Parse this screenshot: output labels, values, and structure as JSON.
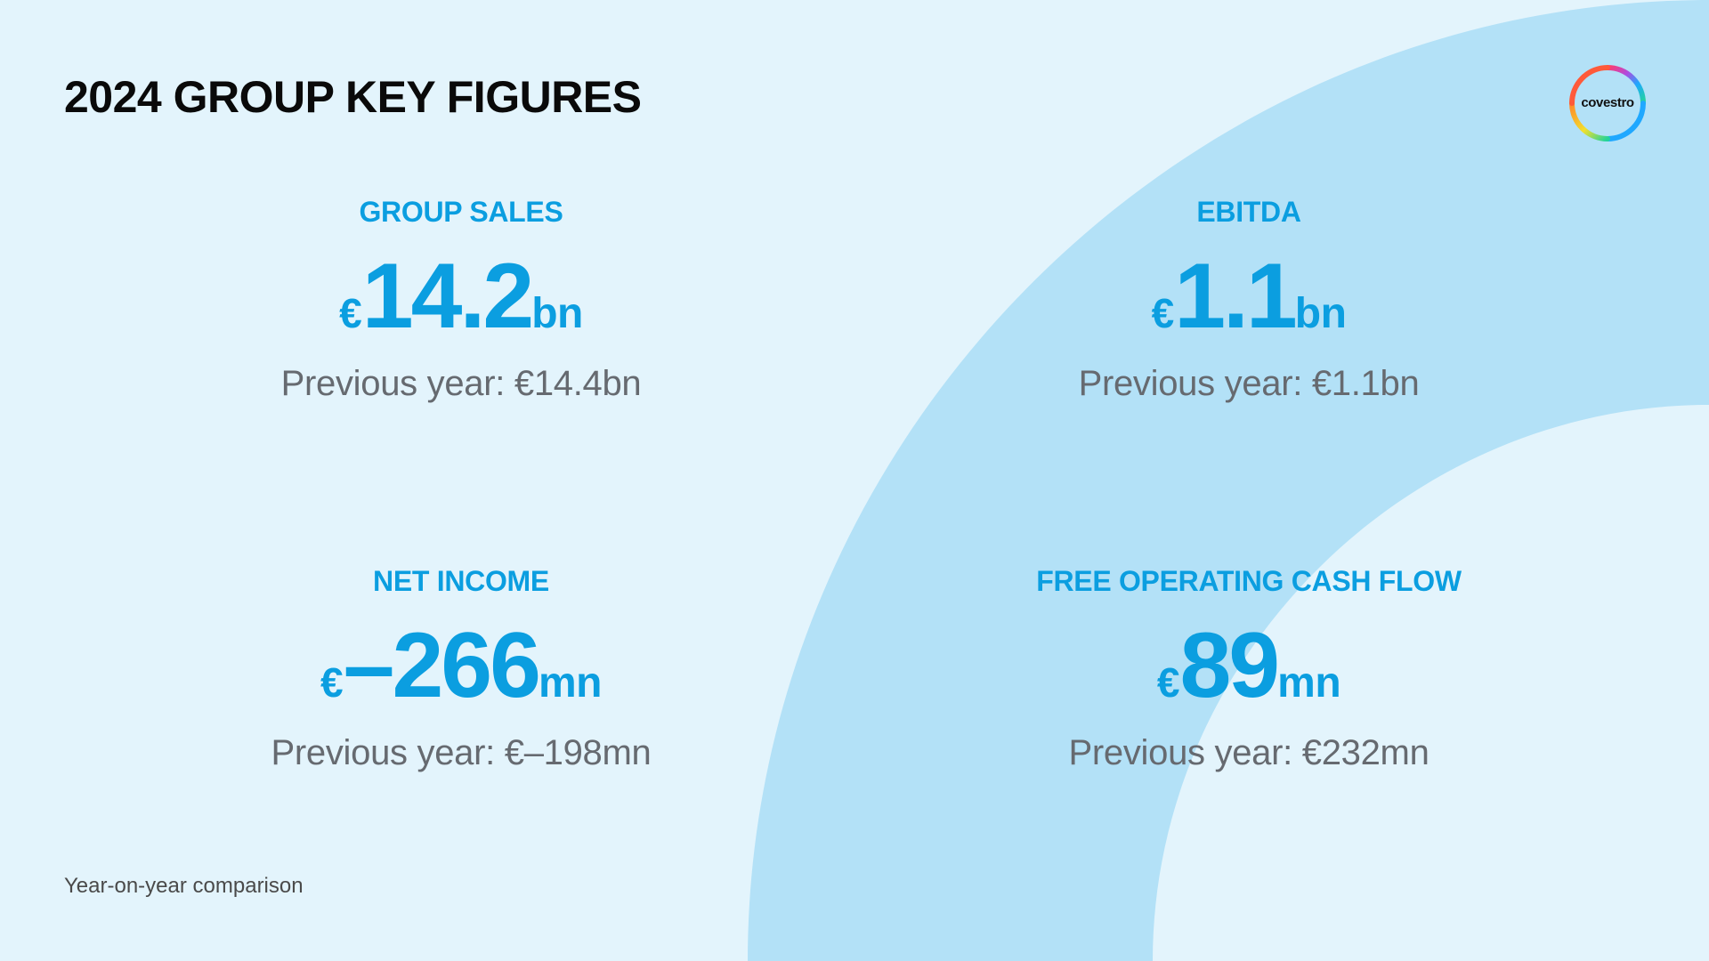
{
  "page": {
    "title": "2024 GROUP KEY FIGURES",
    "footnote": "Year-on-year comparison"
  },
  "logo": {
    "text": "covestro"
  },
  "kpis": [
    {
      "label": "GROUP SALES",
      "currency": "€",
      "value": "14.2",
      "unit": "bn",
      "previous": "Previous year: €14.4bn"
    },
    {
      "label": "EBITDA",
      "currency": "€",
      "value": "1.1",
      "unit": "bn",
      "previous": "Previous year: €1.1bn"
    },
    {
      "label": "NET INCOME",
      "currency": "€",
      "value": "–266",
      "unit": "mn",
      "previous": "Previous year: €–198mn"
    },
    {
      "label": "FREE OPERATING CASH FLOW",
      "currency": "€",
      "value": "89",
      "unit": "mn",
      "previous": "Previous year: €232mn"
    }
  ],
  "colors": {
    "background": "#e3f4fc",
    "arc": "#b3e1f7",
    "accent": "#0b9ee0",
    "title": "#0a0a0a",
    "secondary_text": "#666a70"
  }
}
